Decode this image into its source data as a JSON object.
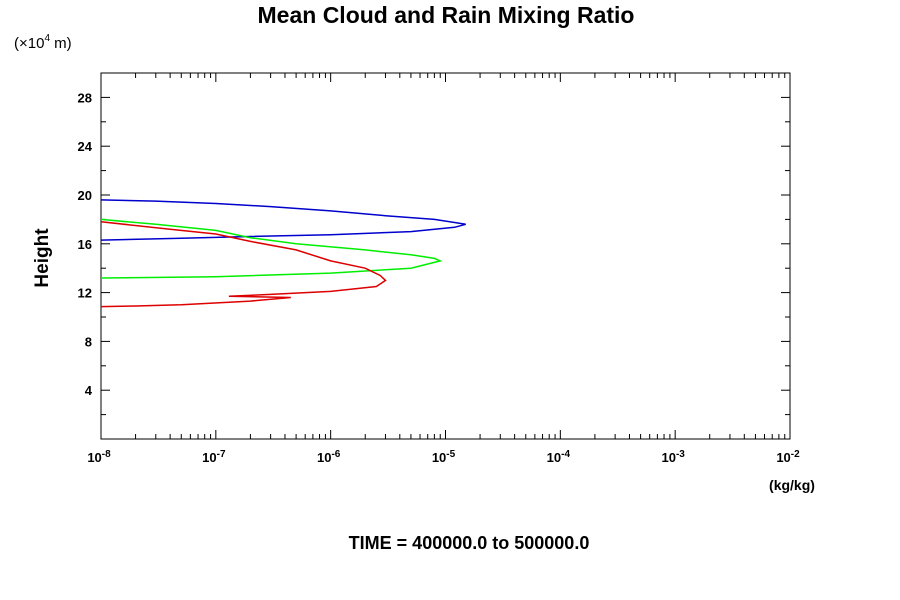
{
  "chart_data": {
    "type": "line",
    "title": "Mean Cloud and Rain Mixing Ratio",
    "ylabel": "Height",
    "y_unit_prefix": "(×10",
    "y_unit_exp": "4",
    "y_unit_suffix": " m)",
    "xlabel": "(kg/kg)",
    "x_scale": "log",
    "xlim": [
      1e-08,
      0.01
    ],
    "ylim": [
      0,
      30
    ],
    "x_ticks": [
      {
        "value": 1e-08,
        "base": "10",
        "exp": "-8"
      },
      {
        "value": 1e-07,
        "base": "10",
        "exp": "-7"
      },
      {
        "value": 1e-06,
        "base": "10",
        "exp": "-6"
      },
      {
        "value": 1e-05,
        "base": "10",
        "exp": "-5"
      },
      {
        "value": 0.0001,
        "base": "10",
        "exp": "-4"
      },
      {
        "value": 0.001,
        "base": "10",
        "exp": "-3"
      },
      {
        "value": 0.01,
        "base": "10",
        "exp": "-2"
      }
    ],
    "y_ticks": [
      "4",
      "8",
      "12",
      "16",
      "20",
      "24",
      "28"
    ],
    "grid": false,
    "series": [
      {
        "color": "#0000cc",
        "points": [
          [
            1e-08,
            19.6
          ],
          [
            3e-08,
            19.5
          ],
          [
            1e-07,
            19.3
          ],
          [
            3e-07,
            19.05
          ],
          [
            1e-06,
            18.7
          ],
          [
            3e-06,
            18.3
          ],
          [
            8e-06,
            18.0
          ],
          [
            1.3e-05,
            17.7
          ],
          [
            1.5e-05,
            17.6
          ],
          [
            1.2e-05,
            17.35
          ],
          [
            5e-06,
            17.0
          ],
          [
            1e-06,
            16.75
          ],
          [
            2e-07,
            16.6
          ],
          [
            5e-08,
            16.45
          ],
          [
            1e-08,
            16.3
          ]
        ]
      },
      {
        "color": "#00ee00",
        "points": [
          [
            1e-08,
            18.0
          ],
          [
            3e-08,
            17.6
          ],
          [
            1e-07,
            17.1
          ],
          [
            2e-07,
            16.5
          ],
          [
            5e-07,
            16.0
          ],
          [
            2e-06,
            15.5
          ],
          [
            5e-06,
            15.1
          ],
          [
            8e-06,
            14.8
          ],
          [
            9e-06,
            14.6
          ],
          [
            5e-06,
            14.0
          ],
          [
            1e-06,
            13.6
          ],
          [
            1e-07,
            13.3
          ],
          [
            1e-08,
            13.2
          ]
        ]
      },
      {
        "color": "#dd0000",
        "points": [
          [
            1e-08,
            17.8
          ],
          [
            4e-08,
            17.2
          ],
          [
            1e-07,
            16.8
          ],
          [
            2e-07,
            16.2
          ],
          [
            5e-07,
            15.5
          ],
          [
            1e-06,
            14.6
          ],
          [
            2e-06,
            14.0
          ],
          [
            2.7e-06,
            13.4
          ],
          [
            3e-06,
            13.0
          ],
          [
            2.5e-06,
            12.5
          ],
          [
            1e-06,
            12.1
          ],
          [
            3e-07,
            11.85
          ],
          [
            1.3e-07,
            11.7
          ],
          [
            4.5e-07,
            11.6
          ],
          [
            2e-07,
            11.3
          ],
          [
            5e-08,
            11.0
          ],
          [
            2e-08,
            10.9
          ],
          [
            1e-08,
            10.85
          ]
        ]
      }
    ]
  },
  "footer": "TIME = 400000.0 to 500000.0"
}
